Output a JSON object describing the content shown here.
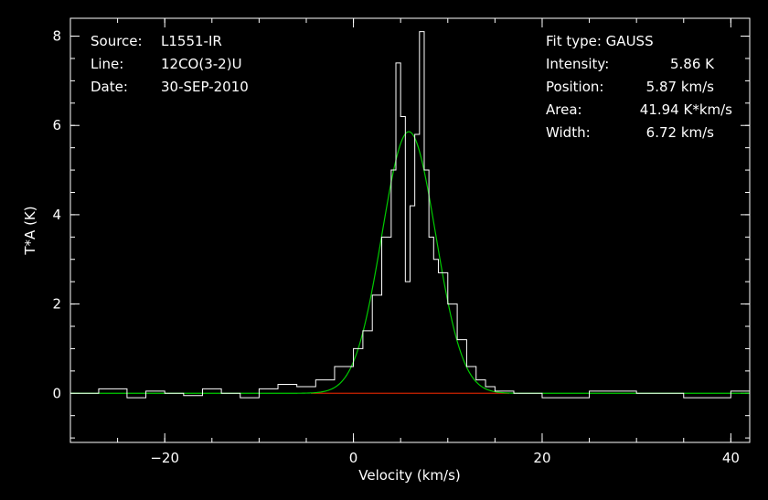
{
  "colors": {
    "background": "#000000",
    "foreground": "#ffffff",
    "fit": "#00cc00",
    "baseline": "#cc2200"
  },
  "header_left": [
    {
      "label": "Source:",
      "value": "L1551-IR"
    },
    {
      "label": "Line:",
      "value": "12CO(3-2)U"
    },
    {
      "label": "Date:",
      "value": "30-SEP-2010"
    }
  ],
  "header_right": {
    "fit_type": "Fit type: GAUSS",
    "rows": [
      {
        "label": "Intensity:",
        "value": "5.86 K"
      },
      {
        "label": "Position:",
        "value": "5.87 km/s"
      },
      {
        "label": "Area:",
        "value": "41.94 K*km/s"
      },
      {
        "label": "Width:",
        "value": "6.72 km/s"
      }
    ]
  },
  "chart_data": {
    "type": "line",
    "xlabel": "Velocity (km/s)",
    "ylabel": "T*A (K)",
    "xlim": [
      -30,
      42
    ],
    "ylim": [
      -1.1,
      8.4
    ],
    "x_ticks": [
      -20,
      0,
      20,
      40
    ],
    "y_ticks": [
      0,
      2,
      4,
      6,
      8
    ],
    "baseline": {
      "x_start": -4.5,
      "x_end": 16.5,
      "y": 0
    },
    "gaussian_fit": {
      "amplitude": 5.86,
      "center": 5.87,
      "fwhm": 6.72
    },
    "series": [
      {
        "style": "histogram",
        "x": [
          -30,
          -27,
          -24,
          -22,
          -20,
          -18,
          -16,
          -14,
          -12,
          -10,
          -8,
          -6,
          -4,
          -2,
          0,
          1,
          2,
          3,
          4,
          4.5,
          5,
          5.5,
          6,
          6.5,
          7,
          7.5,
          8,
          8.5,
          9,
          10,
          11,
          12,
          13,
          14,
          15,
          17,
          20,
          25,
          30,
          35,
          40,
          42
        ],
        "y": [
          0,
          0.1,
          -0.1,
          0.05,
          0,
          -0.05,
          0.1,
          0,
          -0.1,
          0.1,
          0.2,
          0.15,
          0.3,
          0.6,
          1.0,
          1.4,
          2.2,
          3.5,
          5.0,
          7.4,
          6.2,
          2.5,
          4.2,
          5.8,
          8.1,
          5.0,
          3.5,
          3.0,
          2.7,
          2.0,
          1.2,
          0.6,
          0.3,
          0.15,
          0.05,
          0,
          -0.1,
          0.05,
          0,
          -0.1,
          0.05,
          0
        ]
      }
    ]
  }
}
